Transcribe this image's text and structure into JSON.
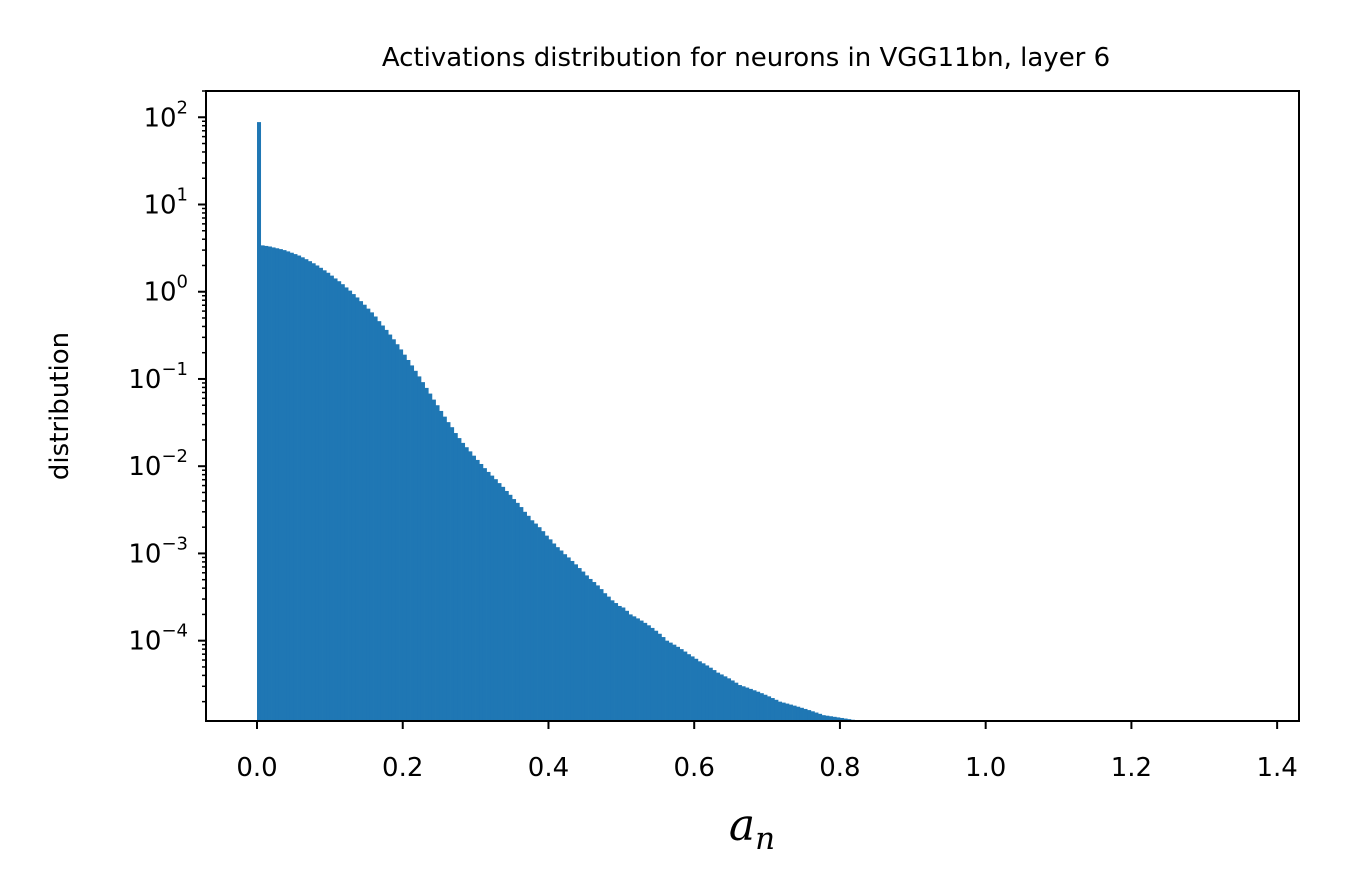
{
  "chart_data": {
    "type": "bar",
    "title": "Activations distribution for neurons in VGG11bn, layer 6",
    "xlabel_base": "a",
    "xlabel_sub": "n",
    "ylabel": "distribution",
    "xlim": [
      -0.07,
      1.43
    ],
    "ylim": [
      1.2e-05,
      200
    ],
    "y_scale": "log",
    "grid": false,
    "color": "#1f77b4",
    "bin_width": 0.00495,
    "x_ticks": [
      {
        "value": 0.0,
        "label": "0.0"
      },
      {
        "value": 0.2,
        "label": "0.2"
      },
      {
        "value": 0.4,
        "label": "0.4"
      },
      {
        "value": 0.6,
        "label": "0.6"
      },
      {
        "value": 0.8,
        "label": "0.8"
      },
      {
        "value": 1.0,
        "label": "1.0"
      },
      {
        "value": 1.2,
        "label": "1.2"
      },
      {
        "value": 1.4,
        "label": "1.4"
      }
    ],
    "y_ticks": [
      {
        "value": 100,
        "base": "10",
        "exp": "2"
      },
      {
        "value": 10,
        "base": "10",
        "exp": "1"
      },
      {
        "value": 1,
        "base": "10",
        "exp": "0"
      },
      {
        "value": 0.1,
        "base": "10",
        "exp": "−1"
      },
      {
        "value": 0.01,
        "base": "10",
        "exp": "−2"
      },
      {
        "value": 0.001,
        "base": "10",
        "exp": "−3"
      },
      {
        "value": 0.0001,
        "base": "10",
        "exp": "−4"
      }
    ],
    "bins": [
      [
        0.0,
        88
      ],
      [
        0.005,
        3.4
      ],
      [
        0.01,
        3.35
      ],
      [
        0.015,
        3.3
      ],
      [
        0.02,
        3.22
      ],
      [
        0.025,
        3.15
      ],
      [
        0.03,
        3.08
      ],
      [
        0.035,
        3.0
      ],
      [
        0.04,
        2.9
      ],
      [
        0.045,
        2.8
      ],
      [
        0.05,
        2.7
      ],
      [
        0.055,
        2.6
      ],
      [
        0.06,
        2.48
      ],
      [
        0.065,
        2.36
      ],
      [
        0.07,
        2.24
      ],
      [
        0.075,
        2.12
      ],
      [
        0.08,
        2.0
      ],
      [
        0.085,
        1.88
      ],
      [
        0.09,
        1.76
      ],
      [
        0.095,
        1.65
      ],
      [
        0.1,
        1.53
      ],
      [
        0.105,
        1.42
      ],
      [
        0.11,
        1.32
      ],
      [
        0.115,
        1.22
      ],
      [
        0.12,
        1.12
      ],
      [
        0.125,
        1.03
      ],
      [
        0.13,
        0.94
      ],
      [
        0.135,
        0.86
      ],
      [
        0.14,
        0.78
      ],
      [
        0.145,
        0.71
      ],
      [
        0.15,
        0.64
      ],
      [
        0.155,
        0.58
      ],
      [
        0.16,
        0.52
      ],
      [
        0.165,
        0.46
      ],
      [
        0.17,
        0.41
      ],
      [
        0.175,
        0.365
      ],
      [
        0.18,
        0.323
      ],
      [
        0.185,
        0.285
      ],
      [
        0.19,
        0.25
      ],
      [
        0.195,
        0.218
      ],
      [
        0.2,
        0.19
      ],
      [
        0.205,
        0.165
      ],
      [
        0.21,
        0.143
      ],
      [
        0.215,
        0.124
      ],
      [
        0.22,
        0.107
      ],
      [
        0.225,
        0.092
      ],
      [
        0.23,
        0.079
      ],
      [
        0.235,
        0.068
      ],
      [
        0.24,
        0.058
      ],
      [
        0.245,
        0.05
      ],
      [
        0.25,
        0.043
      ],
      [
        0.255,
        0.037
      ],
      [
        0.26,
        0.032
      ],
      [
        0.265,
        0.028
      ],
      [
        0.27,
        0.024
      ],
      [
        0.275,
        0.021
      ],
      [
        0.28,
        0.0185
      ],
      [
        0.285,
        0.0165
      ],
      [
        0.29,
        0.0148
      ],
      [
        0.295,
        0.0132
      ],
      [
        0.3,
        0.0118
      ],
      [
        0.305,
        0.0106
      ],
      [
        0.31,
        0.0095
      ],
      [
        0.315,
        0.0086
      ],
      [
        0.32,
        0.0078
      ],
      [
        0.325,
        0.0071
      ],
      [
        0.33,
        0.0064
      ],
      [
        0.335,
        0.0058
      ],
      [
        0.34,
        0.0052
      ],
      [
        0.345,
        0.0047
      ],
      [
        0.35,
        0.0042
      ],
      [
        0.355,
        0.0038
      ],
      [
        0.36,
        0.0034
      ],
      [
        0.365,
        0.003
      ],
      [
        0.37,
        0.0027
      ],
      [
        0.375,
        0.0024
      ],
      [
        0.38,
        0.0022
      ],
      [
        0.385,
        0.002
      ],
      [
        0.39,
        0.0018
      ],
      [
        0.395,
        0.0016
      ],
      [
        0.4,
        0.00145
      ],
      [
        0.405,
        0.0013
      ],
      [
        0.41,
        0.00118
      ],
      [
        0.415,
        0.00108
      ],
      [
        0.42,
        0.00098
      ],
      [
        0.425,
        0.0009
      ],
      [
        0.43,
        0.00082
      ],
      [
        0.435,
        0.00075
      ],
      [
        0.44,
        0.00068
      ],
      [
        0.445,
        0.00062
      ],
      [
        0.45,
        0.00056
      ],
      [
        0.455,
        0.00051
      ],
      [
        0.46,
        0.00047
      ],
      [
        0.465,
        0.00043
      ],
      [
        0.47,
        0.00039
      ],
      [
        0.475,
        0.00035
      ],
      [
        0.48,
        0.00032
      ],
      [
        0.485,
        0.00029
      ],
      [
        0.49,
        0.00027
      ],
      [
        0.495,
        0.00025
      ],
      [
        0.5,
        0.00024
      ],
      [
        0.505,
        0.00022
      ],
      [
        0.51,
        0.0002
      ],
      [
        0.515,
        0.00019
      ],
      [
        0.52,
        0.00018
      ],
      [
        0.525,
        0.00017
      ],
      [
        0.53,
        0.00016
      ],
      [
        0.535,
        0.00015
      ],
      [
        0.54,
        0.00014
      ],
      [
        0.545,
        0.00013
      ],
      [
        0.55,
        0.00012
      ],
      [
        0.555,
        0.00011
      ],
      [
        0.56,
        0.0001
      ],
      [
        0.565,
        9.5e-05
      ],
      [
        0.57,
        9e-05
      ],
      [
        0.575,
        8.5e-05
      ],
      [
        0.58,
        8e-05
      ],
      [
        0.585,
        7.5e-05
      ],
      [
        0.59,
        7e-05
      ],
      [
        0.595,
        6.6e-05
      ],
      [
        0.6,
        6.2e-05
      ],
      [
        0.605,
        5.8e-05
      ],
      [
        0.61,
        5.5e-05
      ],
      [
        0.615,
        5.2e-05
      ],
      [
        0.62,
        4.9e-05
      ],
      [
        0.625,
        4.6e-05
      ],
      [
        0.63,
        4.3e-05
      ],
      [
        0.635,
        4.1e-05
      ],
      [
        0.64,
        3.9e-05
      ],
      [
        0.645,
        3.7e-05
      ],
      [
        0.65,
        3.5e-05
      ],
      [
        0.655,
        3.3e-05
      ],
      [
        0.66,
        3.1e-05
      ],
      [
        0.665,
        3e-05
      ],
      [
        0.67,
        2.9e-05
      ],
      [
        0.675,
        2.8e-05
      ],
      [
        0.68,
        2.7e-05
      ],
      [
        0.685,
        2.6e-05
      ],
      [
        0.69,
        2.5e-05
      ],
      [
        0.695,
        2.4e-05
      ],
      [
        0.7,
        2.3e-05
      ],
      [
        0.705,
        2.2e-05
      ],
      [
        0.71,
        2.1e-05
      ],
      [
        0.715,
        2e-05
      ],
      [
        0.72,
        1.95e-05
      ],
      [
        0.725,
        1.9e-05
      ],
      [
        0.73,
        1.85e-05
      ],
      [
        0.735,
        1.8e-05
      ],
      [
        0.74,
        1.75e-05
      ],
      [
        0.745,
        1.7e-05
      ],
      [
        0.75,
        1.65e-05
      ],
      [
        0.755,
        1.6e-05
      ],
      [
        0.76,
        1.55e-05
      ],
      [
        0.765,
        1.5e-05
      ],
      [
        0.77,
        1.45e-05
      ],
      [
        0.775,
        1.4e-05
      ],
      [
        0.78,
        1.38e-05
      ],
      [
        0.785,
        1.36e-05
      ],
      [
        0.79,
        1.34e-05
      ],
      [
        0.795,
        1.32e-05
      ],
      [
        0.8,
        1.3e-05
      ],
      [
        0.805,
        1.28e-05
      ],
      [
        0.81,
        1.26e-05
      ],
      [
        0.815,
        1.24e-05
      ],
      [
        0.82,
        1.22e-05
      ],
      [
        0.825,
        1.2e-05
      ],
      [
        0.83,
        1.18e-05
      ],
      [
        0.835,
        1.16e-05
      ],
      [
        0.84,
        1.14e-05
      ],
      [
        0.845,
        1.12e-05
      ],
      [
        0.85,
        1.1e-05
      ],
      [
        0.855,
        1.08e-05
      ],
      [
        0.86,
        1.06e-05
      ],
      [
        0.865,
        1.04e-05
      ],
      [
        0.87,
        1.02e-05
      ],
      [
        0.875,
        1e-05
      ],
      [
        0.88,
        9.8e-06
      ],
      [
        0.885,
        9.6e-06
      ],
      [
        0.89,
        9.4e-06
      ],
      [
        0.895,
        9.2e-06
      ],
      [
        0.9,
        9e-06
      ],
      [
        0.905,
        8.8e-06
      ],
      [
        0.91,
        8.6e-06
      ],
      [
        0.915,
        8.4e-06
      ],
      [
        0.92,
        8.2e-06
      ],
      [
        0.925,
        8e-06
      ],
      [
        0.93,
        7.8e-06
      ],
      [
        0.94,
        7.6e-06
      ],
      [
        0.95,
        7.4e-06
      ],
      [
        0.96,
        7.2e-06
      ],
      [
        0.97,
        7e-06
      ],
      [
        0.98,
        6.8e-06
      ],
      [
        0.99,
        6.6e-06
      ],
      [
        1.0,
        6.4e-06
      ],
      [
        1.03,
        6.2e-06
      ],
      [
        1.08,
        6e-06
      ],
      [
        1.085,
        5.8e-06
      ],
      [
        1.13,
        5.6e-06
      ],
      [
        1.16,
        5.4e-06
      ],
      [
        1.165,
        5.4e-06
      ],
      [
        1.17,
        5.4e-06
      ],
      [
        1.19,
        5.4e-06
      ],
      [
        1.205,
        5.4e-06
      ],
      [
        1.22,
        5.4e-06
      ],
      [
        1.28,
        5.4e-06
      ],
      [
        1.305,
        5.4e-06
      ],
      [
        1.335,
        5.4e-06
      ],
      [
        1.35,
        5.4e-06
      ],
      [
        1.365,
        5.4e-06
      ]
    ]
  }
}
